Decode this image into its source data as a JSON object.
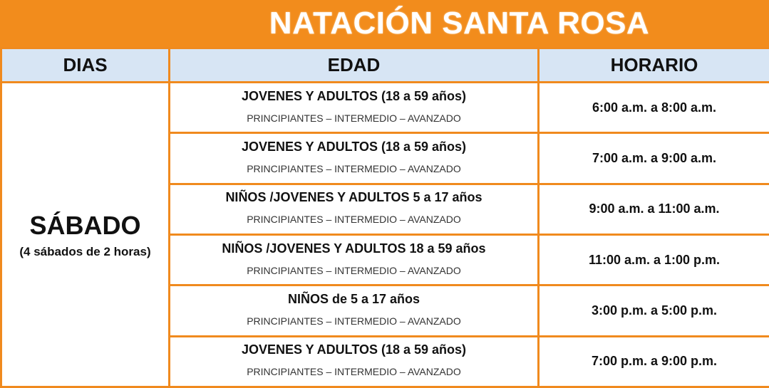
{
  "title": "NATACIÓN SANTA ROSA",
  "headers": {
    "days": "DIAS",
    "age": "EDAD",
    "schedule": "HORARIO"
  },
  "day": {
    "name": "SÁBADO",
    "note": "(4 sábados de 2 horas)"
  },
  "rows": [
    {
      "group": "JOVENES Y ADULTOS (18 a 59 años)",
      "levels": "PRINCIPIANTES – INTERMEDIO – AVANZADO",
      "time": "6:00 a.m. a 8:00 a.m."
    },
    {
      "group": "JOVENES Y ADULTOS (18 a 59 años)",
      "levels": "PRINCIPIANTES – INTERMEDIO – AVANZADO",
      "time": "7:00 a.m. a 9:00 a.m."
    },
    {
      "group": "NIÑOS /JOVENES Y ADULTOS  5 a 17 años",
      "levels": "PRINCIPIANTES – INTERMEDIO – AVANZADO",
      "time": "9:00 a.m. a 11:00 a.m."
    },
    {
      "group": "NIÑOS /JOVENES Y ADULTOS  18 a 59 años",
      "levels": "PRINCIPIANTES – INTERMEDIO – AVANZADO",
      "time": "11:00 a.m. a 1:00 p.m."
    },
    {
      "group": "NIÑOS de 5 a 17 años",
      "levels": "PRINCIPIANTES – INTERMEDIO – AVANZADO",
      "time": "3:00 p.m. a 5:00 p.m."
    },
    {
      "group": "JOVENES Y ADULTOS (18 a 59 años)",
      "levels": "PRINCIPIANTES – INTERMEDIO – AVANZADO",
      "time": "7:00 p.m. a 9:00 p.m."
    }
  ],
  "colors": {
    "accent": "#f08a1e",
    "header_bg": "#d7e5f4"
  }
}
